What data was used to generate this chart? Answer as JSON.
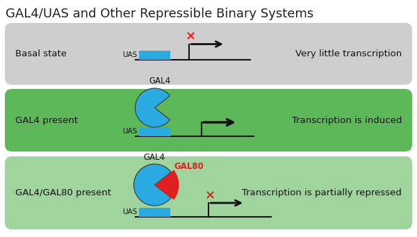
{
  "title": "GAL4/UAS and Other Repressible Binary Systems",
  "title_fontsize": 13,
  "title_color": "#222222",
  "bg_color": "#ffffff",
  "panel1_bg": "#cecece",
  "panel2_bg": "#5db85a",
  "panel3_bg": "#9fd49d",
  "panel1_label": "Basal state",
  "panel2_label": "GAL4 present",
  "panel3_label": "GAL4/GAL80 present",
  "panel1_desc": "Very little transcription",
  "panel2_desc": "Transcription is induced",
  "panel3_desc": "Transcription is partially repressed",
  "uas_color": "#29abe2",
  "gal4_color": "#29abe2",
  "gal80_color": "#e02020",
  "dna_color": "#111111",
  "arrow_color": "#111111",
  "cross_color": "#e02020",
  "label_fontsize": 9.5,
  "desc_fontsize": 9.5,
  "gal_label_fontsize": 8.5
}
